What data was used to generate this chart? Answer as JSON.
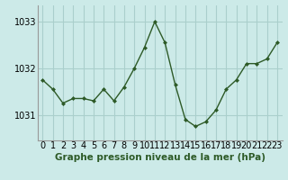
{
  "x": [
    0,
    1,
    2,
    3,
    4,
    5,
    6,
    7,
    8,
    9,
    10,
    11,
    12,
    13,
    14,
    15,
    16,
    17,
    18,
    19,
    20,
    21,
    22,
    23
  ],
  "y": [
    1031.75,
    1031.55,
    1031.25,
    1031.35,
    1031.35,
    1031.3,
    1031.55,
    1031.3,
    1031.6,
    1032.0,
    1032.45,
    1033.0,
    1032.55,
    1031.65,
    1030.9,
    1030.75,
    1030.85,
    1031.1,
    1031.55,
    1031.75,
    1032.1,
    1032.1,
    1032.2,
    1032.55
  ],
  "line_color": "#2d5a27",
  "marker": "D",
  "marker_size": 2,
  "bg_color": "#cceae8",
  "grid_color": "#aacfcc",
  "xlabel": "Graphe pression niveau de la mer (hPa)",
  "xlabel_fontsize": 7.5,
  "yticks": [
    1031,
    1032,
    1033
  ],
  "ylim": [
    1030.45,
    1033.35
  ],
  "xlim": [
    -0.5,
    23.5
  ],
  "tick_labelsize": 7,
  "spine_color": "#999999"
}
